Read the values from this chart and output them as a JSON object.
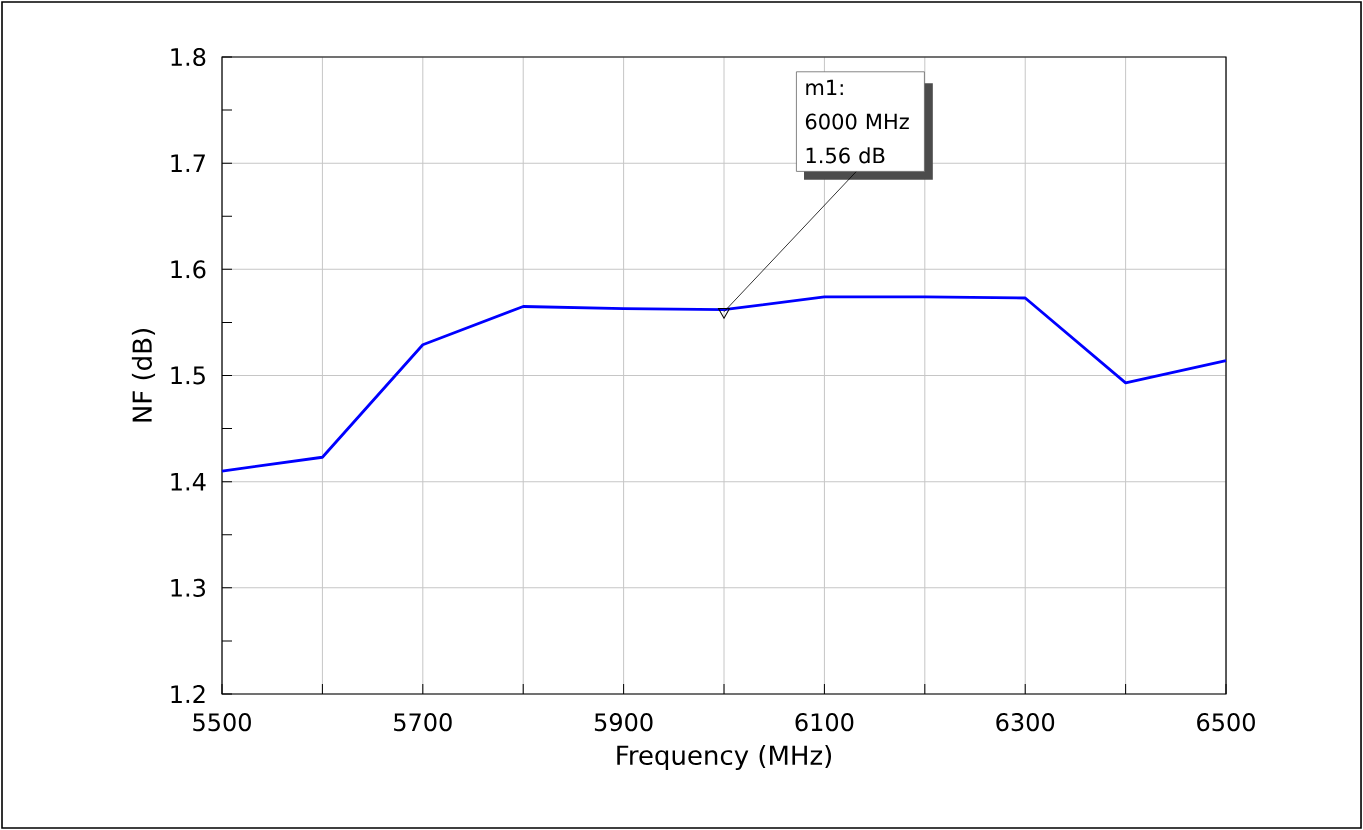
{
  "chart_data": {
    "type": "line",
    "xlabel": "Frequency (MHz)",
    "ylabel": "NF (dB)",
    "x": [
      5500,
      5600,
      5700,
      5800,
      5900,
      6000,
      6100,
      6200,
      6300,
      6400,
      6500
    ],
    "series": [
      {
        "color": "#0000ff",
        "values": [
          1.41,
          1.423,
          1.529,
          1.565,
          1.563,
          1.562,
          1.574,
          1.574,
          1.573,
          1.493,
          1.514
        ]
      },
      {
        "type": "scatter",
        "x": [
          6000
        ],
        "values": [
          1.56
        ],
        "color": "#000000",
        "marker": "triangle"
      }
    ],
    "xlim": [
      5500,
      6500
    ],
    "ylim": [
      1.2,
      1.8
    ],
    "xticks": [
      5500,
      {
        "value": 5600,
        "label": null
      },
      5700,
      {
        "value": 5800,
        "label": null
      },
      5900,
      {
        "value": 6000,
        "label": null
      },
      6100,
      {
        "value": 6200,
        "label": null
      },
      6300,
      {
        "value": 6400,
        "label": null
      },
      6500
    ],
    "yticks": [
      1.2,
      1.3,
      1.4,
      1.5,
      1.6,
      1.7,
      1.8
    ],
    "grid": true,
    "marker": "none",
    "line_style": "solid",
    "annotations": [
      {
        "text": "m1: 6000 MHz 1.56 dB",
        "x": 6000,
        "y": 1.56
      }
    ]
  }
}
